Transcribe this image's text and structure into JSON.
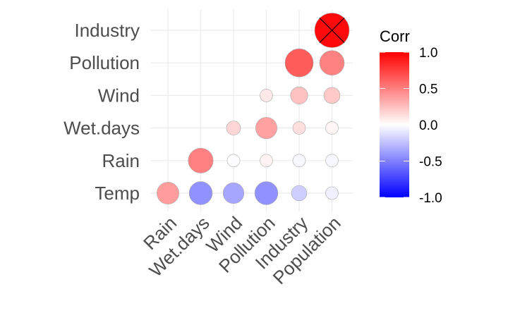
{
  "chart_data": {
    "type": "heatmap",
    "subtype": "correlogram-circles",
    "x_categories": [
      "Rain",
      "Wet.days",
      "Wind",
      "Pollution",
      "Industry",
      "Population"
    ],
    "y_categories": [
      "Temp",
      "Rain",
      "Wet.days",
      "Wind",
      "Pollution",
      "Industry"
    ],
    "cells": [
      {
        "x": "Rain",
        "y": "Temp",
        "value": 0.39
      },
      {
        "x": "Wet.days",
        "y": "Temp",
        "value": -0.43
      },
      {
        "x": "Wind",
        "y": "Temp",
        "value": -0.35
      },
      {
        "x": "Pollution",
        "y": "Temp",
        "value": -0.43
      },
      {
        "x": "Industry",
        "y": "Temp",
        "value": -0.19
      },
      {
        "x": "Population",
        "y": "Temp",
        "value": -0.06
      },
      {
        "x": "Wet.days",
        "y": "Rain",
        "value": 0.5
      },
      {
        "x": "Wind",
        "y": "Rain",
        "value": -0.01
      },
      {
        "x": "Pollution",
        "y": "Rain",
        "value": 0.05
      },
      {
        "x": "Industry",
        "y": "Rain",
        "value": -0.03
      },
      {
        "x": "Population",
        "y": "Rain",
        "value": -0.03
      },
      {
        "x": "Wind",
        "y": "Wet.days",
        "value": 0.16
      },
      {
        "x": "Pollution",
        "y": "Wet.days",
        "value": 0.37
      },
      {
        "x": "Industry",
        "y": "Wet.days",
        "value": 0.13
      },
      {
        "x": "Population",
        "y": "Wet.days",
        "value": 0.04
      },
      {
        "x": "Pollution",
        "y": "Wind",
        "value": 0.09
      },
      {
        "x": "Industry",
        "y": "Wind",
        "value": 0.24
      },
      {
        "x": "Population",
        "y": "Wind",
        "value": 0.21
      },
      {
        "x": "Industry",
        "y": "Pollution",
        "value": 0.64
      },
      {
        "x": "Population",
        "y": "Pollution",
        "value": 0.49
      },
      {
        "x": "Population",
        "y": "Industry",
        "value": 0.96,
        "marked": true
      }
    ],
    "legend": {
      "title": "Corr",
      "ticks": [
        "1.0",
        "0.5",
        "0.0",
        "-0.5",
        "-1.0"
      ],
      "tick_values": [
        1.0,
        0.5,
        0.0,
        -0.5,
        -1.0
      ],
      "placement": "right",
      "colors": {
        "low": "#0000ff",
        "mid": "#ffffff",
        "high": "#ff0000"
      }
    },
    "value_range": [
      -1,
      1
    ],
    "grid": true,
    "colors": {
      "grid": "#ebebeb",
      "text": "#4d4d4d",
      "circle_outline": "#aaaaaa",
      "mark": "#000000"
    }
  }
}
